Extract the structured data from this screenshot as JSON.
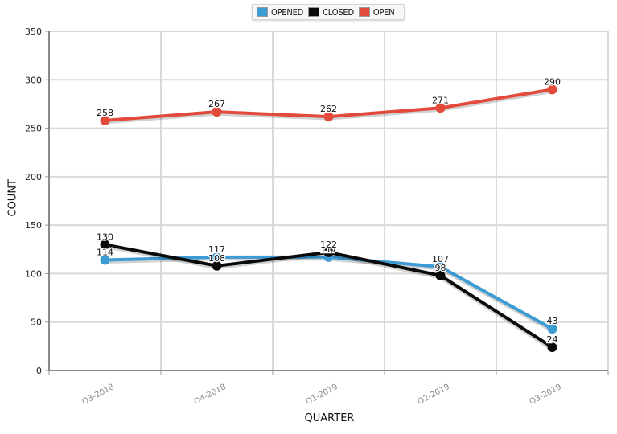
{
  "legend": {
    "items": [
      {
        "label": "OPENED",
        "color": "#3d9bd3"
      },
      {
        "label": "CLOSED",
        "color": "#0a0a0a"
      },
      {
        "label": "OPEN",
        "color": "#e24b3b"
      }
    ]
  },
  "chart_data": {
    "type": "line",
    "title": "",
    "xlabel": "QUARTER",
    "ylabel": "COUNT",
    "categories": [
      "Q3-2018",
      "Q4-2018",
      "Q1-2019",
      "Q2-2019",
      "Q3-2019"
    ],
    "ylim": [
      0,
      350
    ],
    "yticks": [
      0,
      50,
      100,
      150,
      200,
      250,
      300,
      350
    ],
    "grid": true,
    "legend_position": "top-center",
    "series": [
      {
        "name": "OPENED",
        "color": "#3d9bd3",
        "values": [
          114,
          117,
          117,
          107,
          43
        ],
        "labels": [
          "114",
          "117",
          "117",
          "107",
          "43"
        ]
      },
      {
        "name": "CLOSED",
        "color": "#0a0a0a",
        "values": [
          130,
          108,
          122,
          98,
          24
        ],
        "labels": [
          "130",
          "108",
          "122",
          "98",
          "24"
        ]
      },
      {
        "name": "OPEN",
        "color": "#e24b3b",
        "values": [
          258,
          267,
          262,
          271,
          290
        ],
        "labels": [
          "258",
          "267",
          "262",
          "271",
          "290"
        ]
      }
    ]
  }
}
